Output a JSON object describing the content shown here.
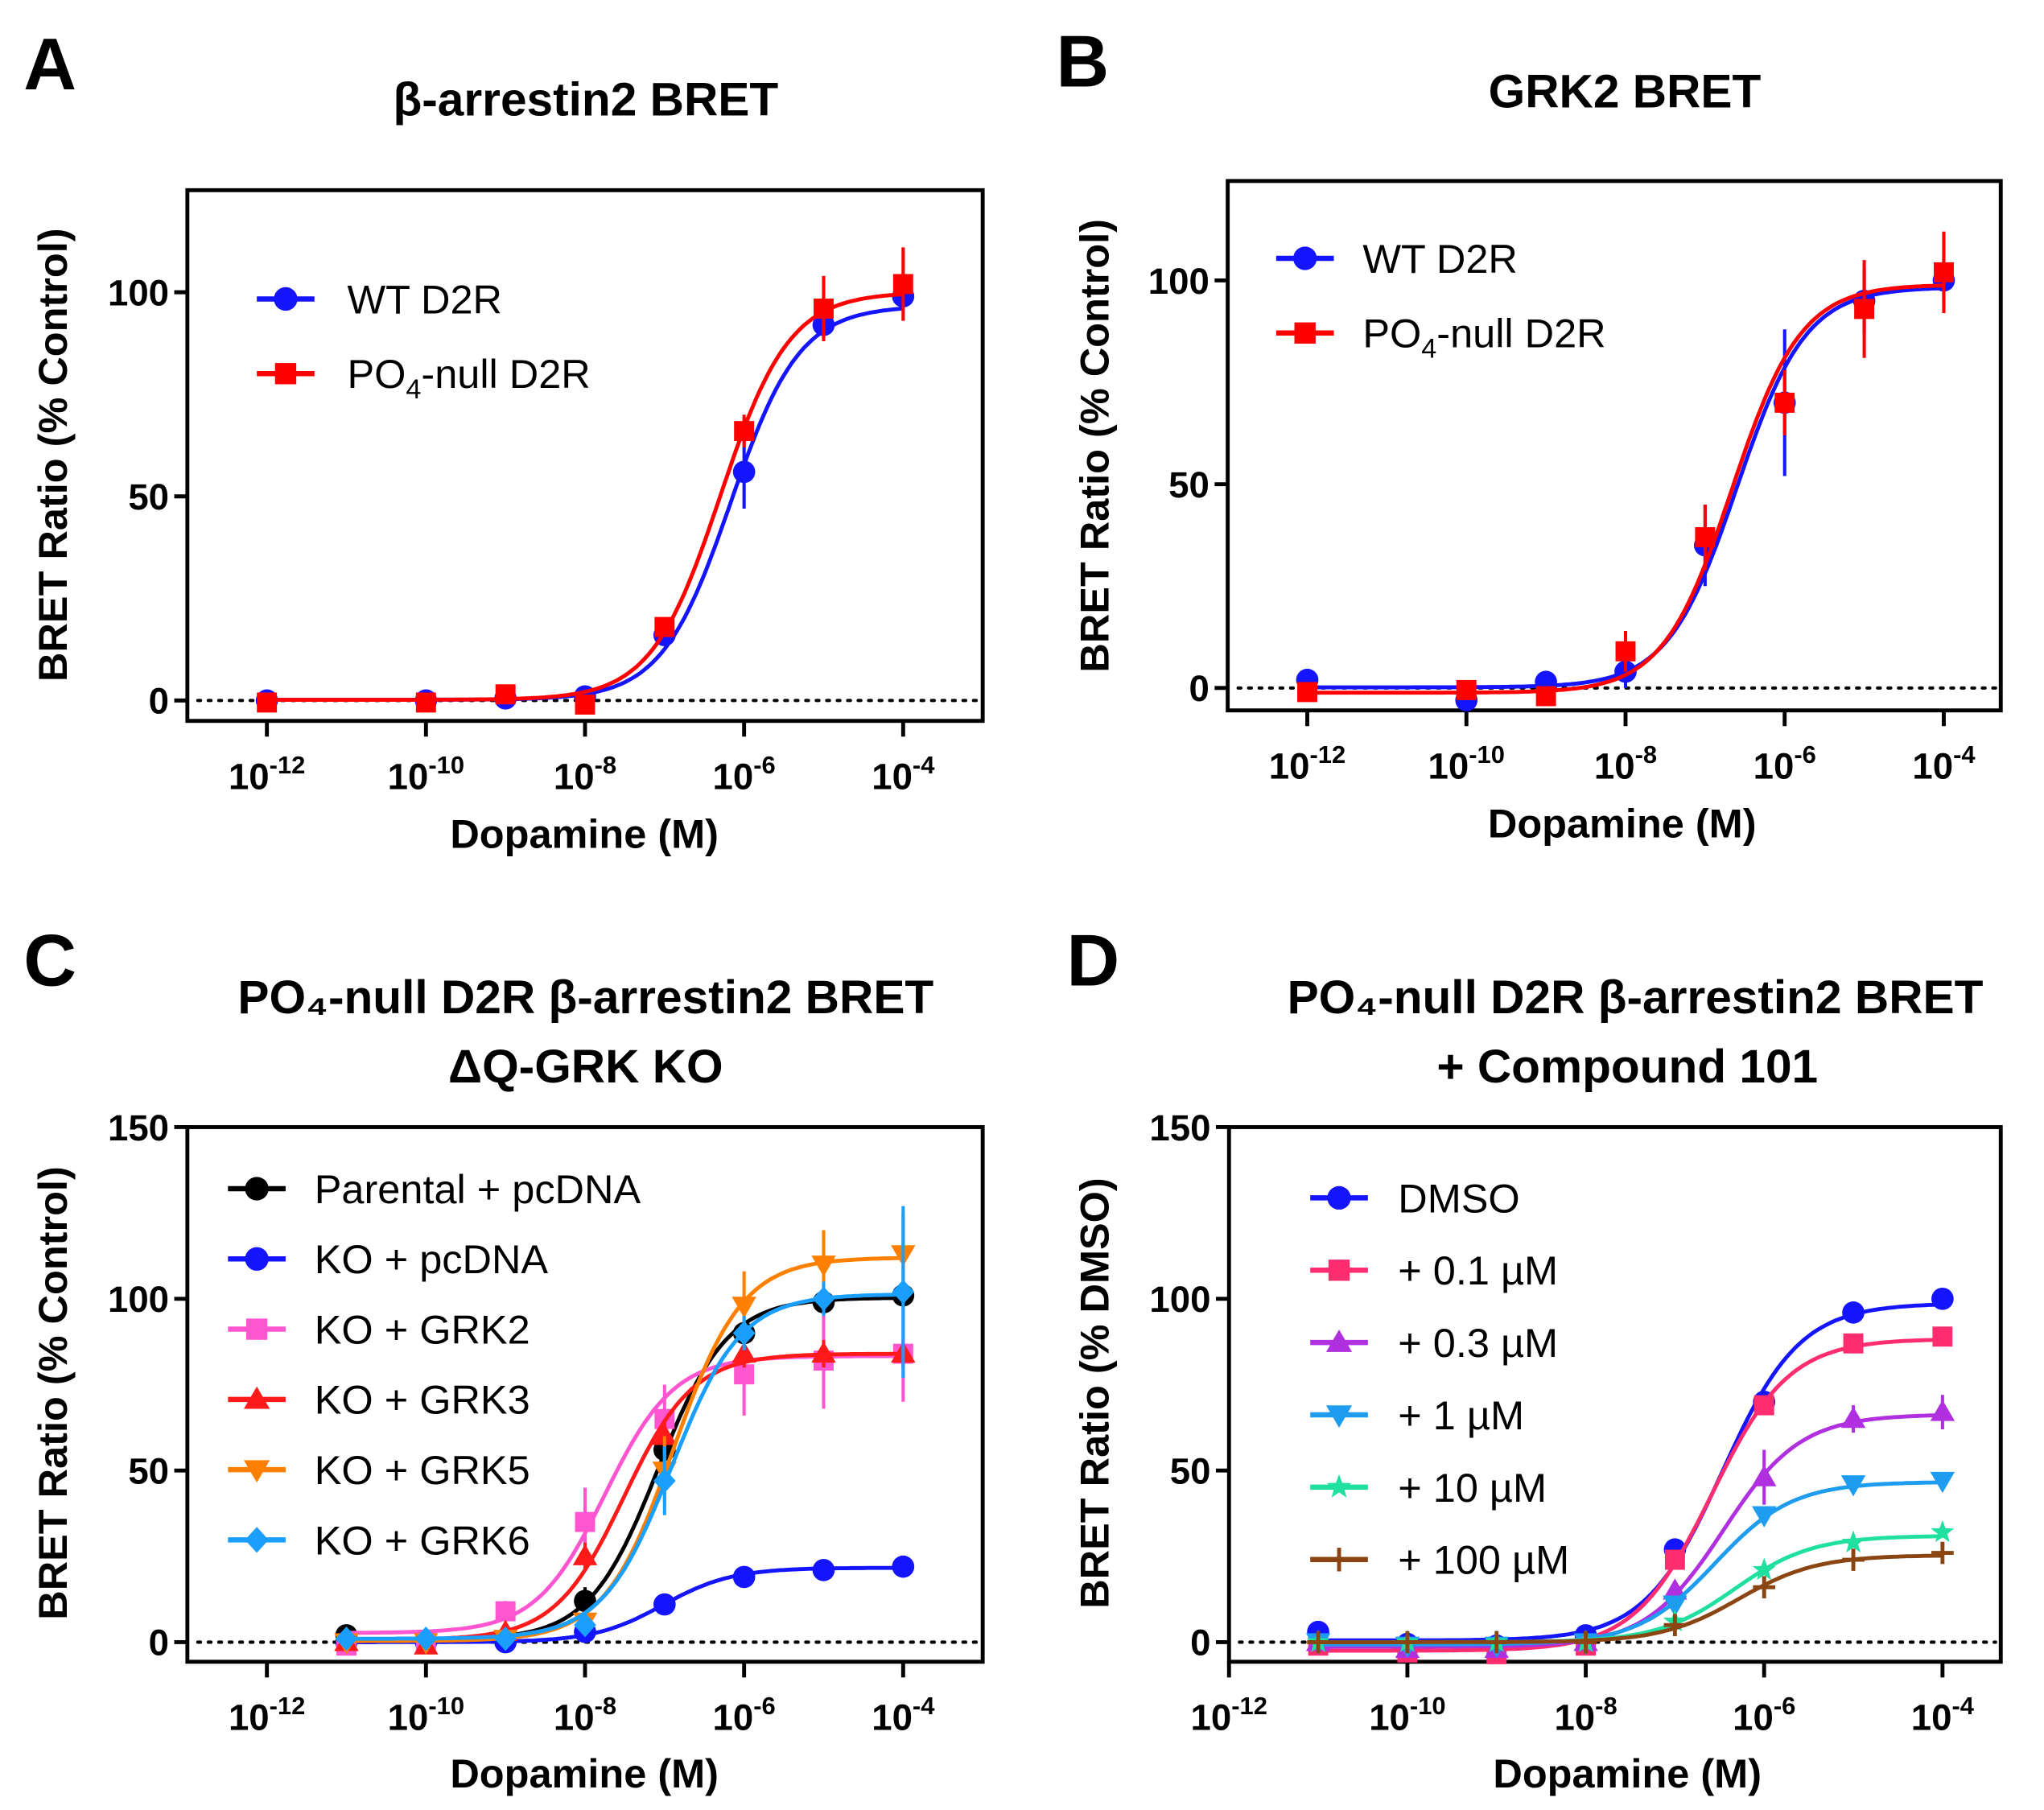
{
  "chart_data": [
    {
      "panel": "A",
      "type": "line",
      "title": "β-arrestin2 BRET",
      "xlabel": "Dopamine (M)",
      "ylabel": "BRET Ratio (% Control)",
      "xscale": "log",
      "xlim": [
        1e-13,
        0.001
      ],
      "ylim": [
        -5,
        125
      ],
      "xticks": [
        1e-12,
        1e-10,
        1e-08,
        1e-06,
        0.0001
      ],
      "xtick_labels": [
        "10-12",
        "10-10",
        "10-8",
        "10-6",
        "10-4"
      ],
      "yticks": [
        0,
        50,
        100
      ],
      "legend": "top-left",
      "zero_line": "dotted",
      "x": [
        1e-12,
        1e-10,
        1e-09,
        1e-08,
        1e-07,
        1e-06,
        1e-05,
        0.0001
      ],
      "series": [
        {
          "name": "WT D2R",
          "color": "#1414ff",
          "marker": "circle",
          "values": [
            0,
            0,
            0.5,
            1,
            16,
            56,
            92,
            99
          ],
          "err": [
            1,
            1,
            1,
            1,
            2,
            9,
            2,
            2
          ]
        },
        {
          "name": "PO₄-null D2R",
          "color": "#ff0000",
          "marker": "square",
          "values": [
            -0.5,
            -0.5,
            1.5,
            -1,
            18,
            66,
            96,
            102
          ],
          "err": [
            1,
            1,
            1,
            1,
            2,
            4,
            8,
            9
          ]
        }
      ]
    },
    {
      "panel": "B",
      "type": "line",
      "title": "GRK2 BRET",
      "xlabel": "Dopamine (M)",
      "ylabel": "BRET Ratio (% Control)",
      "xscale": "log",
      "xlim": [
        1e-13,
        0.00052
      ],
      "ylim": [
        -5.5,
        124.4
      ],
      "xticks": [
        1e-12,
        1e-10,
        1e-08,
        1e-06,
        0.0001
      ],
      "xtick_labels": [
        "10-12",
        "10-10",
        "10-8",
        "10-6",
        "10-4"
      ],
      "yticks": [
        0,
        50,
        100
      ],
      "legend": "top-left",
      "zero_line": "dotted",
      "x": [
        1e-12,
        1e-10,
        1e-09,
        1e-08,
        1e-07,
        1e-06,
        1e-05,
        0.0001
      ],
      "series": [
        {
          "name": "WT D2R",
          "color": "#1414ff",
          "marker": "circle",
          "values": [
            2,
            -3,
            1.5,
            4,
            35,
            70,
            95,
            100
          ],
          "err": [
            1,
            1,
            1,
            4,
            10,
            18,
            8,
            6
          ]
        },
        {
          "name": "PO₄-null D2R",
          "color": "#ff0000",
          "marker": "square",
          "values": [
            -1,
            -0.5,
            -2,
            9,
            37,
            70,
            93,
            102
          ],
          "err": [
            1,
            1,
            1,
            5,
            8,
            8,
            12,
            10
          ]
        }
      ]
    },
    {
      "panel": "C",
      "type": "line",
      "title": "PO₄-null D2R β-arrestin2 BRET",
      "subtitle": "ΔQ-GRK KO",
      "xlabel": "Dopamine (M)",
      "ylabel": "BRET Ratio (% Control)",
      "xscale": "log",
      "xlim": [
        1e-13,
        0.001
      ],
      "ylim": [
        -5.7,
        150
      ],
      "xticks": [
        1e-12,
        1e-10,
        1e-08,
        1e-06,
        0.0001
      ],
      "xtick_labels": [
        "10-12",
        "10-10",
        "10-8",
        "10-6",
        "10-4"
      ],
      "yticks": [
        0,
        50,
        100,
        150
      ],
      "legend": "top-left",
      "zero_line": "dotted",
      "x": [
        1e-11,
        1e-10,
        1e-09,
        1e-08,
        1e-07,
        1e-06,
        1e-05,
        0.0001
      ],
      "series": [
        {
          "name": "Parental + pcDNA",
          "color": "#000000",
          "marker": "circle",
          "values": [
            2,
            0,
            0,
            12,
            56,
            90,
            99,
            101
          ],
          "err": [
            1,
            1,
            1,
            4,
            5,
            3,
            2,
            3
          ]
        },
        {
          "name": "KO + pcDNA",
          "color": "#1414ff",
          "marker": "circle",
          "values": [
            0,
            0,
            0,
            3,
            11,
            19,
            21,
            22
          ],
          "err": [
            1,
            1,
            1,
            1,
            1,
            1,
            1,
            1
          ]
        },
        {
          "name": "KO + GRK2",
          "color": "#ff55d0",
          "marker": "square",
          "values": [
            -1,
            0,
            9,
            35,
            65,
            78,
            82,
            84
          ],
          "err": [
            1,
            1,
            3,
            10,
            10,
            12,
            14,
            14
          ]
        },
        {
          "name": "KO + GRK3",
          "color": "#ff1a1a",
          "marker": "triangle-up",
          "values": [
            0,
            -1,
            3,
            25,
            60,
            84,
            84,
            84
          ],
          "err": [
            1,
            1,
            2,
            4,
            4,
            4,
            4,
            4
          ]
        },
        {
          "name": "KO + GRK5",
          "color": "#ff8000",
          "marker": "triangle-down",
          "values": [
            0,
            0,
            1,
            6,
            50,
            98,
            110,
            113
          ],
          "err": [
            1,
            1,
            1,
            2,
            10,
            10,
            10,
            12
          ]
        },
        {
          "name": "KO + GRK6",
          "color": "#1a9fff",
          "marker": "diamond",
          "values": [
            1,
            1,
            1,
            5,
            47,
            90,
            100,
            102
          ],
          "err": [
            1,
            1,
            1,
            2,
            10,
            5,
            5,
            25
          ]
        }
      ]
    },
    {
      "panel": "D",
      "type": "line",
      "title": "PO₄-null D2R β-arrestin2 BRET",
      "subtitle": "+ Compound 101",
      "xlabel": "Dopamine (M)",
      "ylabel": "BRET  Ratio (% DMSO)",
      "xscale": "log",
      "xlim": [
        1e-12,
        0.00045
      ],
      "ylim": [
        -5.7,
        150
      ],
      "xticks": [
        1e-12,
        1e-10,
        1e-08,
        1e-06,
        0.0001
      ],
      "xtick_labels": [
        "10-12",
        "10-10",
        "10-8",
        "10-6",
        "10-4"
      ],
      "yticks": [
        0,
        50,
        100,
        150
      ],
      "legend": "top-left",
      "zero_line": "dotted",
      "x": [
        1e-11,
        1e-10,
        1e-09,
        1e-08,
        1e-07,
        1e-06,
        1e-05,
        0.0001
      ],
      "series": [
        {
          "name": "DMSO",
          "color": "#1414ff",
          "marker": "circle",
          "values": [
            3,
            -0.5,
            -1,
            2,
            27,
            70,
            96,
            100
          ],
          "err": [
            1,
            1,
            1,
            1,
            2,
            2,
            1,
            1
          ]
        },
        {
          "name": "+ 0.1 µM",
          "color": "#ff2d6f",
          "marker": "square",
          "values": [
            -1,
            -3,
            -3.5,
            -1,
            24,
            69,
            87,
            89
          ],
          "err": [
            1,
            1,
            1,
            1,
            2,
            2,
            2,
            2
          ]
        },
        {
          "name": "+ 0.3 µM",
          "color": "#b030e0",
          "marker": "triangle-up",
          "values": [
            0,
            -2,
            -2,
            0,
            15,
            48,
            65,
            67
          ],
          "err": [
            1,
            1,
            1,
            1,
            2,
            8,
            4,
            5
          ]
        },
        {
          "name": "+ 1 µM",
          "color": "#1e9cf0",
          "marker": "triangle-down",
          "values": [
            0,
            -1,
            -1,
            0,
            11,
            37,
            46,
            47
          ],
          "err": [
            1,
            1,
            1,
            1,
            1,
            2,
            1,
            1
          ]
        },
        {
          "name": "+ 10 µM",
          "color": "#20e0a0",
          "marker": "star",
          "values": [
            0,
            0,
            0,
            0,
            6,
            21,
            29,
            32
          ],
          "err": [
            1,
            1,
            1,
            1,
            1,
            1,
            1,
            1
          ]
        },
        {
          "name": "+ 100 µM",
          "color": "#8b4513",
          "marker": "plus",
          "values": [
            0,
            0,
            0,
            0,
            5,
            16,
            24,
            26
          ],
          "err": [
            1,
            1,
            1,
            1,
            1,
            1,
            1,
            1
          ]
        }
      ]
    }
  ],
  "panel_letters": [
    "A",
    "B",
    "C",
    "D"
  ]
}
